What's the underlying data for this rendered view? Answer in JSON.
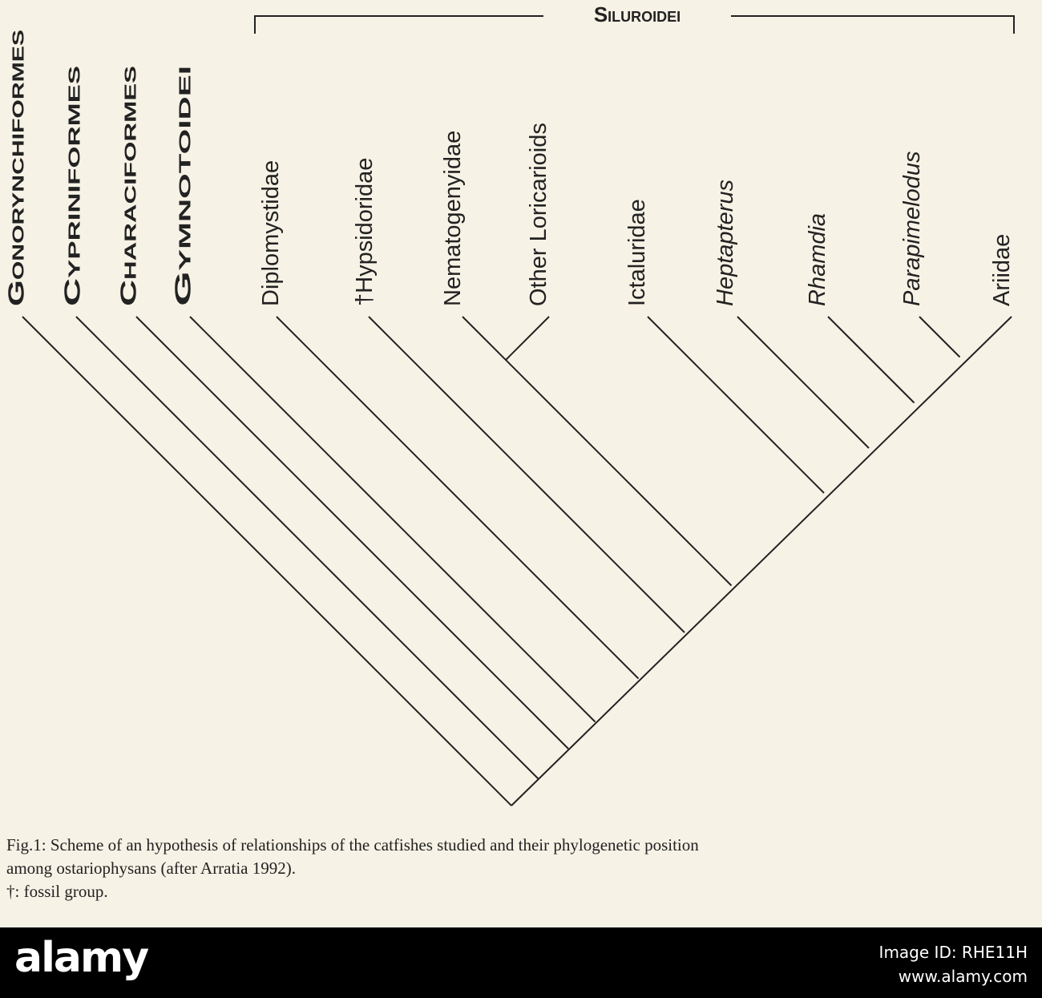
{
  "clade_label": "Siluroidei",
  "taxa": [
    {
      "name": "Gonorynchiformes",
      "style": "smallcaps"
    },
    {
      "name": "Cypriniformes",
      "style": "smallcaps"
    },
    {
      "name": "Characiformes",
      "style": "smallcaps"
    },
    {
      "name": "Gymnotoidei",
      "style": "smallcaps"
    },
    {
      "name": "Diplomystidae",
      "style": "normal"
    },
    {
      "name": "†Hypsidoridae",
      "style": "normal"
    },
    {
      "name": "Nematogenyidae",
      "style": "normal"
    },
    {
      "name": "Other Loricarioids",
      "style": "normal"
    },
    {
      "name": "Ictaluridae",
      "style": "normal"
    },
    {
      "name": "Heptapterus",
      "style": "italic"
    },
    {
      "name": "Rhamdia",
      "style": "italic"
    },
    {
      "name": "Parapimelodus",
      "style": "italic"
    },
    {
      "name": "Ariidae",
      "style": "normal"
    }
  ],
  "caption": {
    "line1": "Fig.1: Scheme of an hypothesis of relationships of the catfishes studied and their phylogenetic position",
    "line2": "among ostariophysans (after Arratia 1992).",
    "line3": "†: fossil group."
  },
  "watermark": {
    "brand": "alamy",
    "image_id": "Image ID: RHE11H",
    "url": "www.alamy.com"
  },
  "colors": {
    "background": "#f7f2e6",
    "ink": "#222222",
    "footer": "#000000"
  }
}
